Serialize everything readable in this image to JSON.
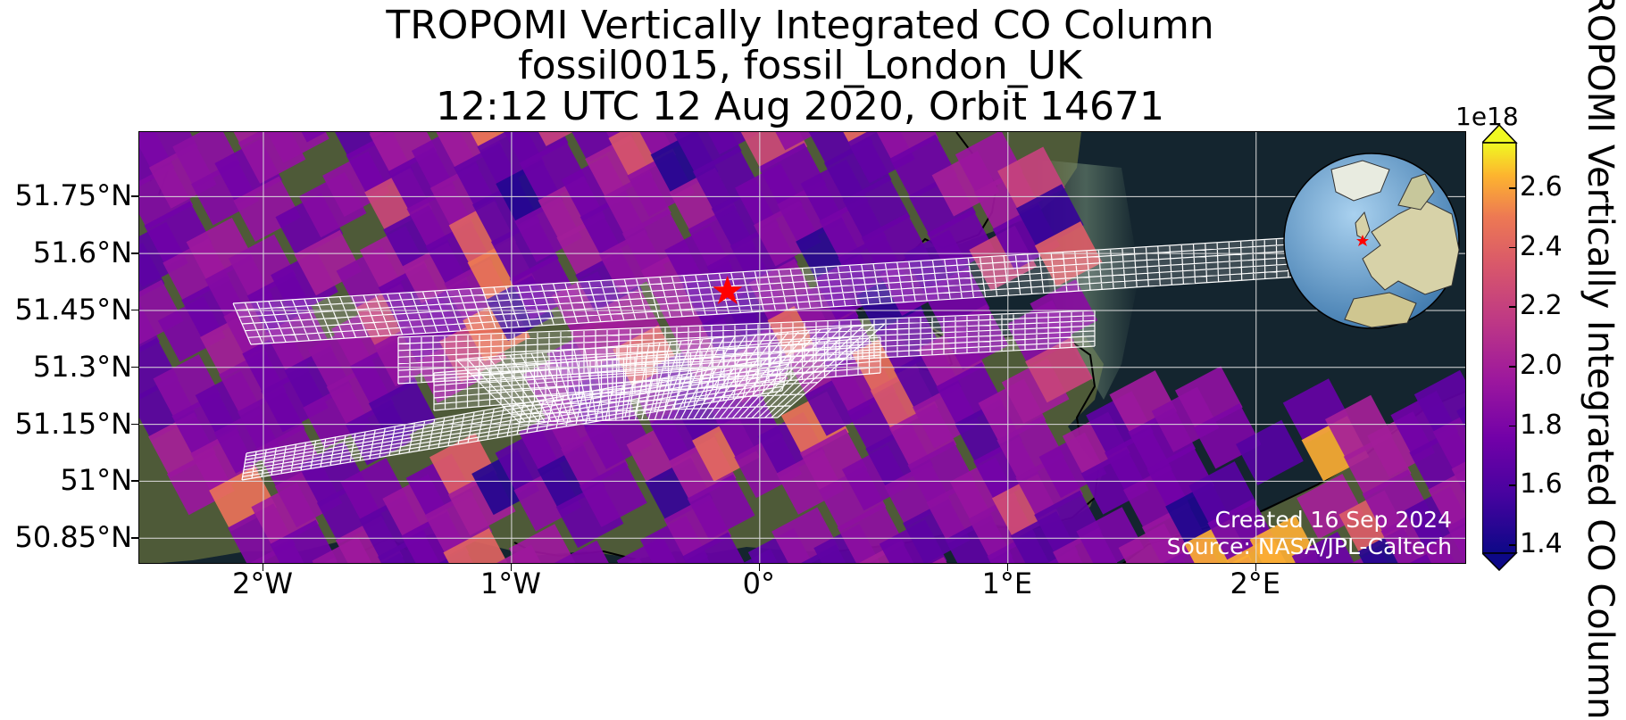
{
  "title": {
    "line1": "TROPOMI Vertically Integrated CO Column",
    "line2": "fossil0015, fossil_London_UK",
    "line3": "12:12 UTC 12 Aug 2020, Orbit 14671"
  },
  "map": {
    "lon_range": [
      -2.5,
      2.85
    ],
    "lat_range": [
      50.78,
      51.92
    ],
    "lat_ticks": [
      "51.75°N",
      "51.6°N",
      "51.45°N",
      "51.3°N",
      "51.15°N",
      "51°N",
      "50.85°N"
    ],
    "lat_values": [
      51.75,
      51.6,
      51.45,
      51.3,
      51.15,
      51.0,
      50.85
    ],
    "lon_ticks": [
      "2°W",
      "1°W",
      "0°",
      "1°E",
      "2°E"
    ],
    "lon_values": [
      -2,
      -1,
      0,
      1,
      2
    ],
    "gridlines": true,
    "target_marker": {
      "name": "star",
      "lon": -0.13,
      "lat": 51.5,
      "color": "#ff0000"
    },
    "inset": "globe-centered-on-europe",
    "credit_line1": "Created 16 Sep 2024",
    "credit_line2": "Source: NASA/JPL-Caltech"
  },
  "colorbar": {
    "label": "TROPOMI Vertically Integrated CO Column",
    "exponent": "1e18",
    "ticks": [
      "1.4",
      "1.6",
      "1.8",
      "2.0",
      "2.2",
      "2.4",
      "2.6"
    ],
    "tick_values": [
      1.4,
      1.6,
      1.8,
      2.0,
      2.2,
      2.4,
      2.6
    ],
    "range": [
      1.37,
      2.75
    ],
    "colormap": "plasma",
    "extend": "both"
  },
  "colors": {
    "sea": "#14252f",
    "land": "#4e5a38",
    "coast": "#000000",
    "grid": "#dddddd",
    "swath_outline": "#ffffff"
  }
}
